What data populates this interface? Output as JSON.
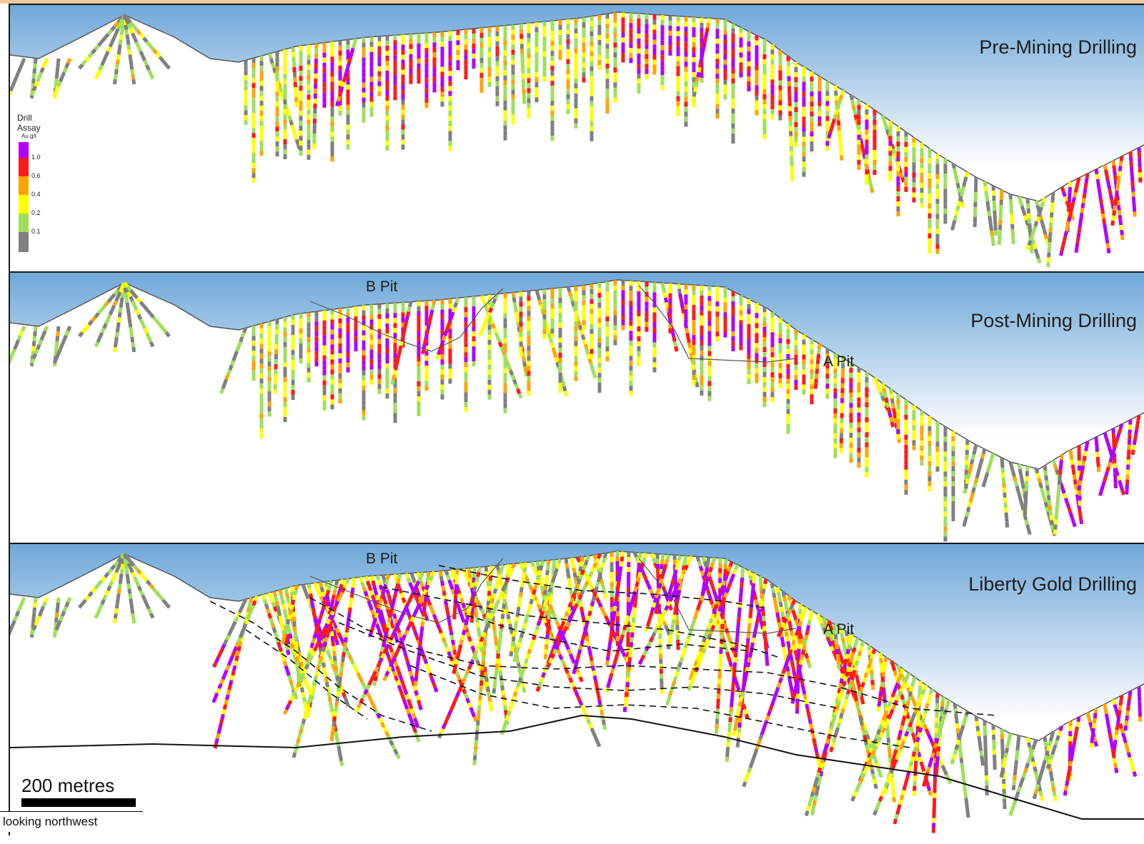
{
  "panels": [
    {
      "title": "Pre-Mining Drilling"
    },
    {
      "title": "Post-Mining Drilling",
      "pits": [
        "B Pit",
        "A Pit"
      ]
    },
    {
      "title": "Liberty Gold Drilling",
      "pits": [
        "B Pit",
        "A Pit"
      ]
    }
  ],
  "legend": {
    "title_line1": "Drill",
    "title_line2": "Assay",
    "unit": "Au g/t",
    "classes": [
      {
        "label": "1.0",
        "color": "#b000ff"
      },
      {
        "label": "0.6",
        "color": "#ff1a1a"
      },
      {
        "label": "0.4",
        "color": "#ffa500"
      },
      {
        "label": "0.2",
        "color": "#ffff00"
      },
      {
        "label": "0.1",
        "color": "#9ee05a"
      },
      {
        "label": "",
        "color": "#808080"
      }
    ]
  },
  "scale_bar": {
    "label": "200 metres"
  },
  "orientation_note": "looking northwest",
  "colors": {
    "sky": "#6fa8d9",
    "surface_line": "#555555",
    "waste": "#808080"
  }
}
